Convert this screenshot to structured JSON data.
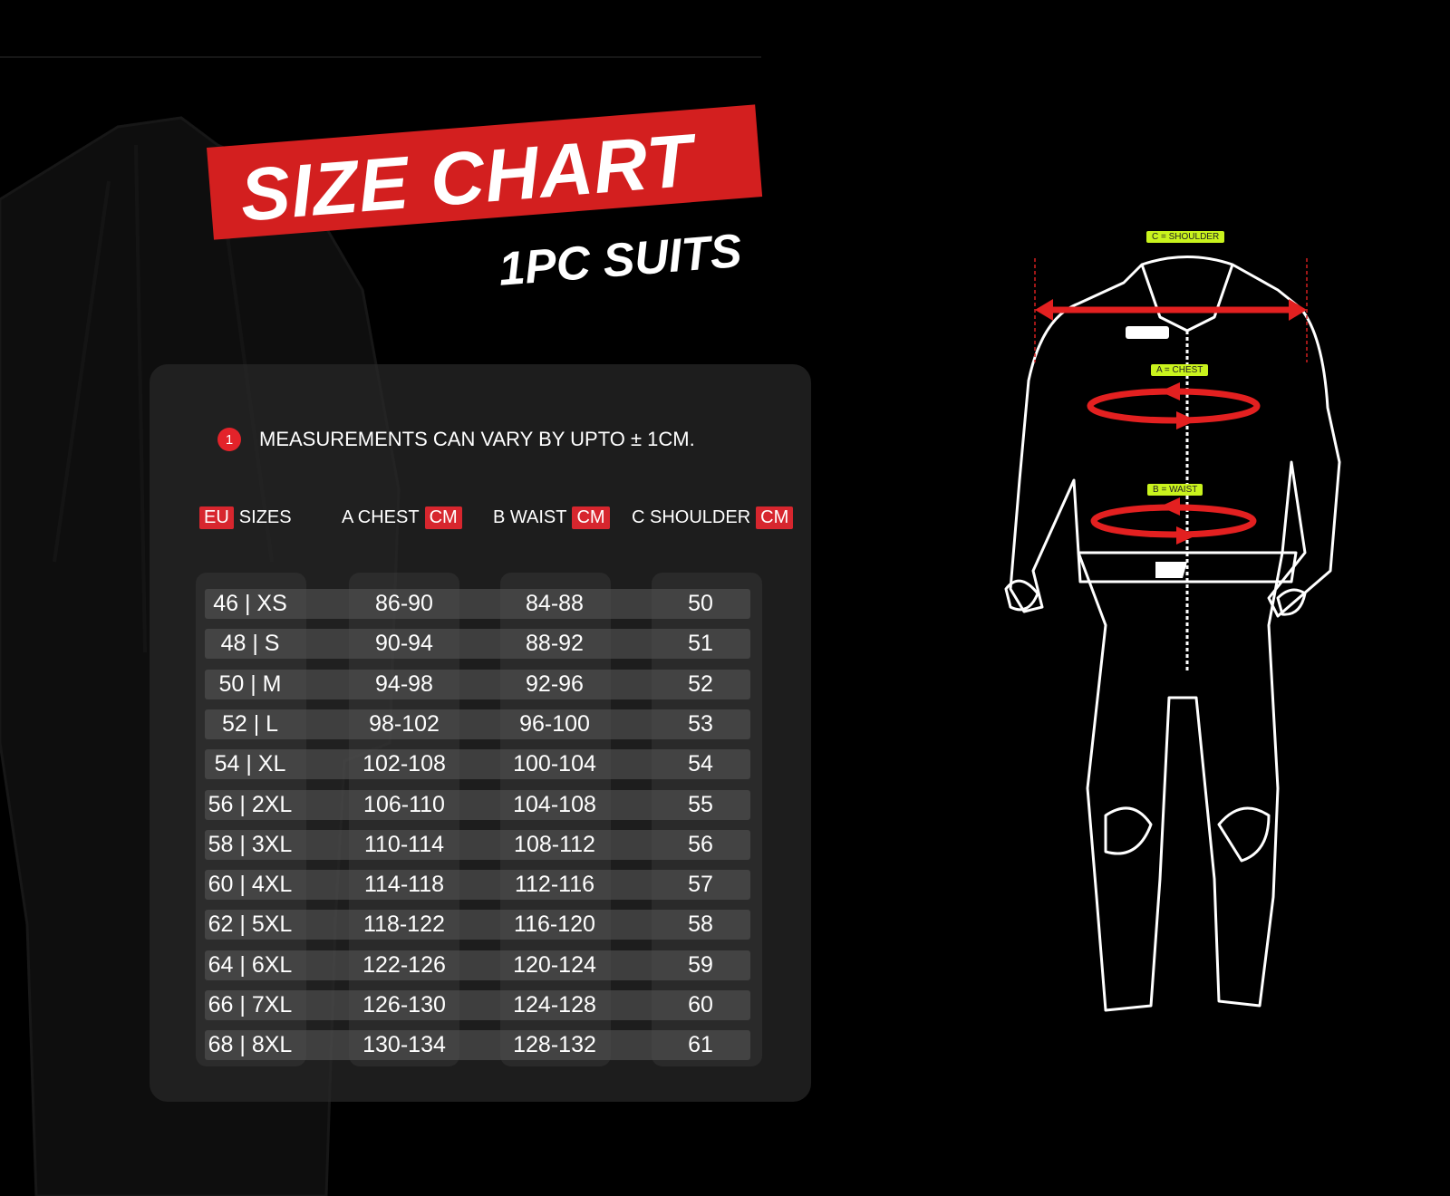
{
  "title": "SIZE CHART",
  "subtitle": "1PC SUITS",
  "note": {
    "icon": "1",
    "text": "MEASUREMENTS CAN VARY BY UPTO ± 1CM."
  },
  "headers": [
    {
      "tag": "EU",
      "label": "SIZES"
    },
    {
      "label": "A CHEST",
      "tag": "CM"
    },
    {
      "label": "B WAIST",
      "tag": "CM"
    },
    {
      "label": "C SHOULDER",
      "tag": "CM"
    }
  ],
  "rows": [
    [
      "46 | XS",
      "86-90",
      "84-88",
      "50"
    ],
    [
      "48 | S",
      "90-94",
      "88-92",
      "51"
    ],
    [
      "50 | M",
      "94-98",
      "92-96",
      "52"
    ],
    [
      "52 | L",
      "98-102",
      "96-100",
      "53"
    ],
    [
      "54 | XL",
      "102-108",
      "100-104",
      "54"
    ],
    [
      "56 | 2XL",
      "106-110",
      "104-108",
      "55"
    ],
    [
      "58 | 3XL",
      "110-114",
      "108-112",
      "56"
    ],
    [
      "60 | 4XL",
      "114-118",
      "112-116",
      "57"
    ],
    [
      "62 | 5XL",
      "118-122",
      "116-120",
      "58"
    ],
    [
      "64 | 6XL",
      "122-126",
      "120-124",
      "59"
    ],
    [
      "66 | 7XL",
      "126-130",
      "124-128",
      "60"
    ],
    [
      "68 | 8XL",
      "130-134",
      "128-132",
      "61"
    ]
  ],
  "diagram": {
    "shoulder": "C = SHOULDER",
    "chest": "A = CHEST",
    "waist": "B = WAIST"
  },
  "colors": {
    "accent": "#d31f1f",
    "label": "#c9f31d"
  }
}
